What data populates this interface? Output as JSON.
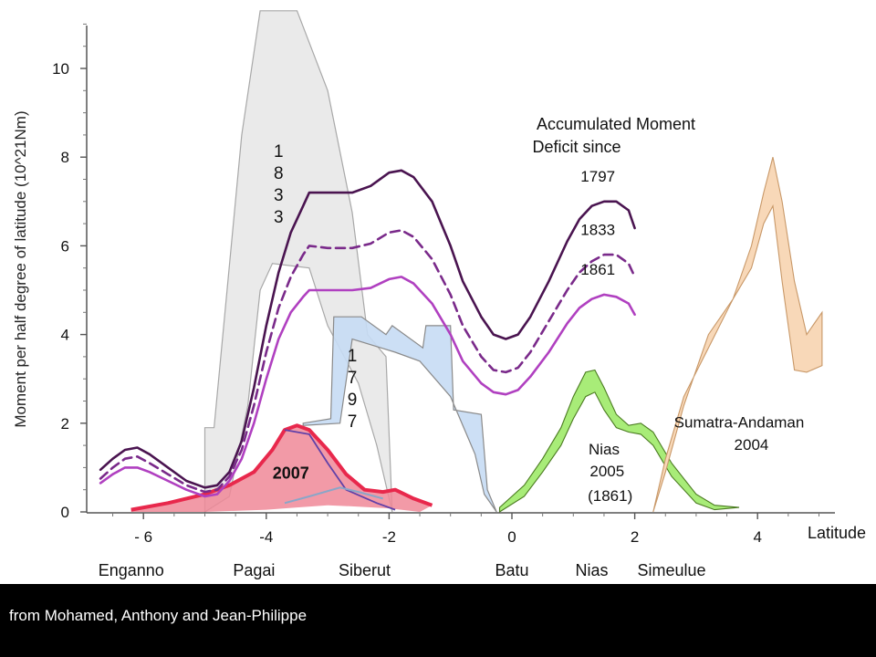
{
  "chart_data": {
    "type": "area",
    "ylabel": "Moment per half degree of latitude (10^21Nm)",
    "xlabel": "Latitude",
    "xlim": [
      -6.9,
      5.3
    ],
    "ylim": [
      0,
      11.3
    ],
    "x_ticks": [
      -6,
      -4,
      -2,
      0,
      2,
      4
    ],
    "x_tick_labels": [
      "- 6",
      "-4",
      "-2",
      "0",
      "2",
      "4"
    ],
    "y_ticks": [
      0,
      2,
      4,
      6,
      8,
      10
    ],
    "y_tick_labels": [
      "0",
      "2",
      "4",
      "6",
      "8",
      "10"
    ],
    "grid": false,
    "legend_title": [
      "Accumulated Moment",
      "Deficit since"
    ],
    "place_labels": [
      {
        "label": "Enganno",
        "x": -6.2
      },
      {
        "label": "Pagai",
        "x": -4.2
      },
      {
        "label": "Siberut",
        "x": -2.4
      },
      {
        "label": "Batu",
        "x": 0
      },
      {
        "label": "Nias",
        "x": 1.3
      },
      {
        "label": "Simeulue",
        "x": 2.6
      }
    ],
    "deficit_curves": [
      {
        "name": "1797",
        "style": "solid",
        "color": "#4a1450",
        "x": [
          -6.7,
          -6.5,
          -6.3,
          -6.1,
          -5.9,
          -5.6,
          -5.3,
          -5.0,
          -4.8,
          -4.6,
          -4.4,
          -4.2,
          -4.0,
          -3.8,
          -3.6,
          -3.4,
          -3.3,
          -3.0,
          -2.6,
          -2.3,
          -2.0,
          -1.8,
          -1.6,
          -1.3,
          -1.0,
          -0.8,
          -0.5,
          -0.3,
          -0.1,
          0.1,
          0.3,
          0.6,
          0.9,
          1.1,
          1.3,
          1.5,
          1.7,
          1.9,
          2.0
        ],
        "y": [
          0.95,
          1.2,
          1.4,
          1.45,
          1.3,
          1.0,
          0.7,
          0.55,
          0.6,
          0.9,
          1.6,
          2.8,
          4.2,
          5.4,
          6.3,
          6.9,
          7.2,
          7.2,
          7.2,
          7.35,
          7.65,
          7.7,
          7.55,
          7.0,
          6.0,
          5.2,
          4.4,
          4.0,
          3.9,
          4.0,
          4.4,
          5.2,
          6.1,
          6.6,
          6.9,
          7.0,
          7.0,
          6.8,
          6.4
        ]
      },
      {
        "name": "1833",
        "style": "dashed",
        "color": "#7a2a8a",
        "x": [
          -6.7,
          -6.5,
          -6.3,
          -6.1,
          -5.9,
          -5.6,
          -5.3,
          -5.0,
          -4.8,
          -4.6,
          -4.4,
          -4.2,
          -4.0,
          -3.8,
          -3.6,
          -3.4,
          -3.3,
          -3.0,
          -2.6,
          -2.3,
          -2.0,
          -1.8,
          -1.6,
          -1.3,
          -1.0,
          -0.8,
          -0.5,
          -0.3,
          -0.1,
          0.1,
          0.3,
          0.6,
          0.9,
          1.1,
          1.3,
          1.5,
          1.7,
          1.9,
          2.0
        ],
        "y": [
          0.75,
          1.0,
          1.2,
          1.25,
          1.1,
          0.85,
          0.6,
          0.45,
          0.5,
          0.8,
          1.4,
          2.4,
          3.6,
          4.6,
          5.3,
          5.8,
          6.0,
          5.95,
          5.95,
          6.05,
          6.3,
          6.35,
          6.2,
          5.7,
          4.9,
          4.2,
          3.5,
          3.2,
          3.15,
          3.25,
          3.6,
          4.3,
          5.0,
          5.4,
          5.65,
          5.8,
          5.8,
          5.6,
          5.3
        ]
      },
      {
        "name": "1861",
        "style": "solid",
        "color": "#b040c0",
        "x": [
          -6.7,
          -6.5,
          -6.3,
          -6.1,
          -5.9,
          -5.6,
          -5.3,
          -5.0,
          -4.8,
          -4.6,
          -4.4,
          -4.2,
          -4.0,
          -3.8,
          -3.6,
          -3.4,
          -3.3,
          -3.0,
          -2.6,
          -2.3,
          -2.0,
          -1.8,
          -1.6,
          -1.3,
          -1.0,
          -0.8,
          -0.5,
          -0.3,
          -0.1,
          0.1,
          0.3,
          0.6,
          0.9,
          1.1,
          1.3,
          1.5,
          1.7,
          1.9,
          2.0
        ],
        "y": [
          0.65,
          0.85,
          1.0,
          1.0,
          0.9,
          0.7,
          0.5,
          0.35,
          0.4,
          0.7,
          1.2,
          2.0,
          3.0,
          3.9,
          4.5,
          4.85,
          5.0,
          5.0,
          5.0,
          5.05,
          5.25,
          5.3,
          5.15,
          4.7,
          4.0,
          3.4,
          2.9,
          2.7,
          2.65,
          2.75,
          3.05,
          3.6,
          4.25,
          4.6,
          4.8,
          4.9,
          4.85,
          4.7,
          4.45
        ]
      }
    ],
    "event_ruptures": [
      {
        "name": "1833",
        "label": [
          "1",
          "8",
          "3",
          "3"
        ],
        "fill": "#e8e8e8",
        "stroke": "#a8a8a8",
        "upper": {
          "x": [
            -5.0,
            -4.85,
            -4.4,
            -4.1,
            -3.5,
            -3.0,
            -2.6,
            -2.35,
            -2.05,
            -1.95
          ],
          "y": [
            1.9,
            1.9,
            8.5,
            11.3,
            11.3,
            9.5,
            6.75,
            4.0,
            3.5,
            0
          ]
        },
        "lower": {
          "x": [
            -5.0,
            -4.6,
            -4.3,
            -4.1,
            -3.9,
            -3.3,
            -3.0,
            -2.5,
            -2.2,
            -1.95
          ],
          "y": [
            0,
            0.35,
            2.4,
            5.0,
            5.6,
            5.5,
            4.2,
            2.9,
            1.5,
            0
          ]
        }
      },
      {
        "name": "1797",
        "label": [
          "1",
          "7",
          "9",
          "7"
        ],
        "fill": "#c6dcf4",
        "stroke": "#8a8a8a",
        "upper": {
          "x": [
            -3.4,
            -2.95,
            -2.9,
            -2.45,
            -2.05,
            -1.95,
            -1.45,
            -1.4,
            -1.0,
            -0.95,
            -0.5,
            -0.4,
            -0.25
          ],
          "y": [
            2.0,
            2.1,
            4.4,
            4.4,
            4.0,
            4.2,
            3.7,
            4.2,
            4.2,
            2.3,
            2.2,
            0.5,
            0
          ]
        },
        "lower": {
          "x": [
            -3.4,
            -2.8,
            -2.6,
            -1.9,
            -1.5,
            -1.0,
            -0.6,
            -0.45,
            -0.25
          ],
          "y": [
            1.95,
            2.0,
            3.9,
            3.6,
            3.4,
            2.6,
            1.3,
            0.4,
            0
          ]
        }
      }
    ],
    "event_2007": {
      "name": "2007",
      "fill": "#f08898",
      "stroke": "#e8284c",
      "inner_line_colors": [
        "#6040a8",
        "#8aa6c8"
      ],
      "upper": {
        "x": [
          -6.2,
          -5.6,
          -5.0,
          -4.6,
          -4.2,
          -3.9,
          -3.7,
          -3.5,
          -3.3,
          -3.0,
          -2.7,
          -2.4,
          -2.1,
          -1.9,
          -1.6,
          -1.3
        ],
        "y": [
          0.05,
          0.2,
          0.4,
          0.6,
          0.9,
          1.4,
          1.85,
          1.95,
          1.85,
          1.4,
          0.85,
          0.5,
          0.45,
          0.5,
          0.3,
          0.15
        ]
      },
      "lower": {
        "x": [
          -6.2,
          -5.0,
          -4.0,
          -3.5,
          -3.0,
          -2.5,
          -2.0,
          -1.5
        ],
        "y": [
          0,
          0,
          0.05,
          0.1,
          0.15,
          0.12,
          0.08,
          0.0
        ]
      }
    },
    "events": [
      {
        "name": "Nias 2005 (1861)",
        "label": [
          "Nias",
          "2005",
          "(1861)"
        ],
        "fill": "#a8ec78",
        "stroke": "#4a7a20",
        "upper": {
          "x": [
            -0.2,
            0.2,
            0.5,
            0.8,
            1.0,
            1.2,
            1.35,
            1.5,
            1.7,
            1.9,
            2.1,
            2.3,
            2.6,
            3.0,
            3.3,
            3.7
          ],
          "y": [
            0.1,
            0.6,
            1.2,
            1.9,
            2.6,
            3.15,
            3.2,
            2.8,
            2.2,
            1.95,
            2.0,
            1.8,
            1.1,
            0.4,
            0.15,
            0.1
          ]
        },
        "lower": {
          "x": [
            3.7,
            3.3,
            3.0,
            2.6,
            2.3,
            2.1,
            1.9,
            1.7,
            1.5,
            1.35,
            1.2,
            1.0,
            0.8,
            0.5,
            0.2,
            -0.2
          ],
          "y": [
            0.1,
            0.05,
            0.2,
            0.8,
            1.5,
            1.75,
            1.8,
            1.9,
            2.3,
            2.7,
            2.6,
            2.1,
            1.5,
            0.9,
            0.35,
            0.0
          ]
        }
      },
      {
        "name": "Sumatra-Andaman 2004",
        "label": [
          "Sumatra-Andaman",
          "2004"
        ],
        "fill": "#f8d8b8",
        "stroke": "#c89868",
        "upper": {
          "x": [
            2.3,
            2.5,
            2.8,
            3.2,
            3.6,
            3.9,
            4.1,
            4.25,
            4.4,
            4.6,
            4.8,
            4.95,
            5.05
          ],
          "y": [
            0.0,
            1.2,
            2.6,
            3.7,
            4.8,
            6.0,
            7.2,
            8.0,
            7.0,
            5.2,
            4.0,
            4.3,
            4.5
          ]
        },
        "lower": {
          "x": [
            5.05,
            4.8,
            4.6,
            4.4,
            4.25,
            4.1,
            3.9,
            3.6,
            3.2,
            2.8,
            2.5,
            2.3
          ],
          "y": [
            3.3,
            3.15,
            3.2,
            5.2,
            6.9,
            6.5,
            5.5,
            4.8,
            4.0,
            2.4,
            0.9,
            0.0
          ]
        }
      }
    ]
  },
  "credit": "from Mohamed, Anthony and Jean-Philippe"
}
